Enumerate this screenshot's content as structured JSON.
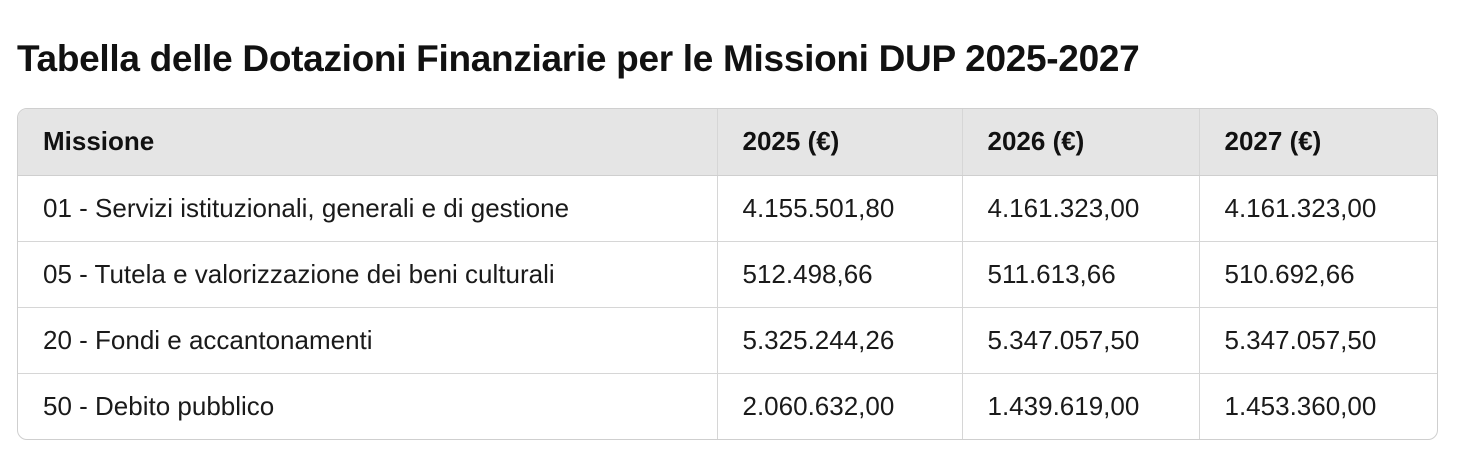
{
  "title": "Tabella delle Dotazioni Finanziarie per le Missioni DUP 2025-2027",
  "table": {
    "headers": [
      "Missione",
      "2025 (€)",
      "2026 (€)",
      "2027 (€)"
    ],
    "rows": [
      [
        "01 - Servizi istituzionali, generali e di gestione",
        "4.155.501,80",
        "4.161.323,00",
        "4.161.323,00"
      ],
      [
        "05 - Tutela e valorizzazione dei beni culturali",
        "512.498,66",
        "511.613,66",
        "510.692,66"
      ],
      [
        "20 - Fondi e accantonamenti",
        "5.325.244,26",
        "5.347.057,50",
        "5.347.057,50"
      ],
      [
        "50 - Debito pubblico",
        "2.060.632,00",
        "1.439.619,00",
        "1.453.360,00"
      ]
    ]
  }
}
